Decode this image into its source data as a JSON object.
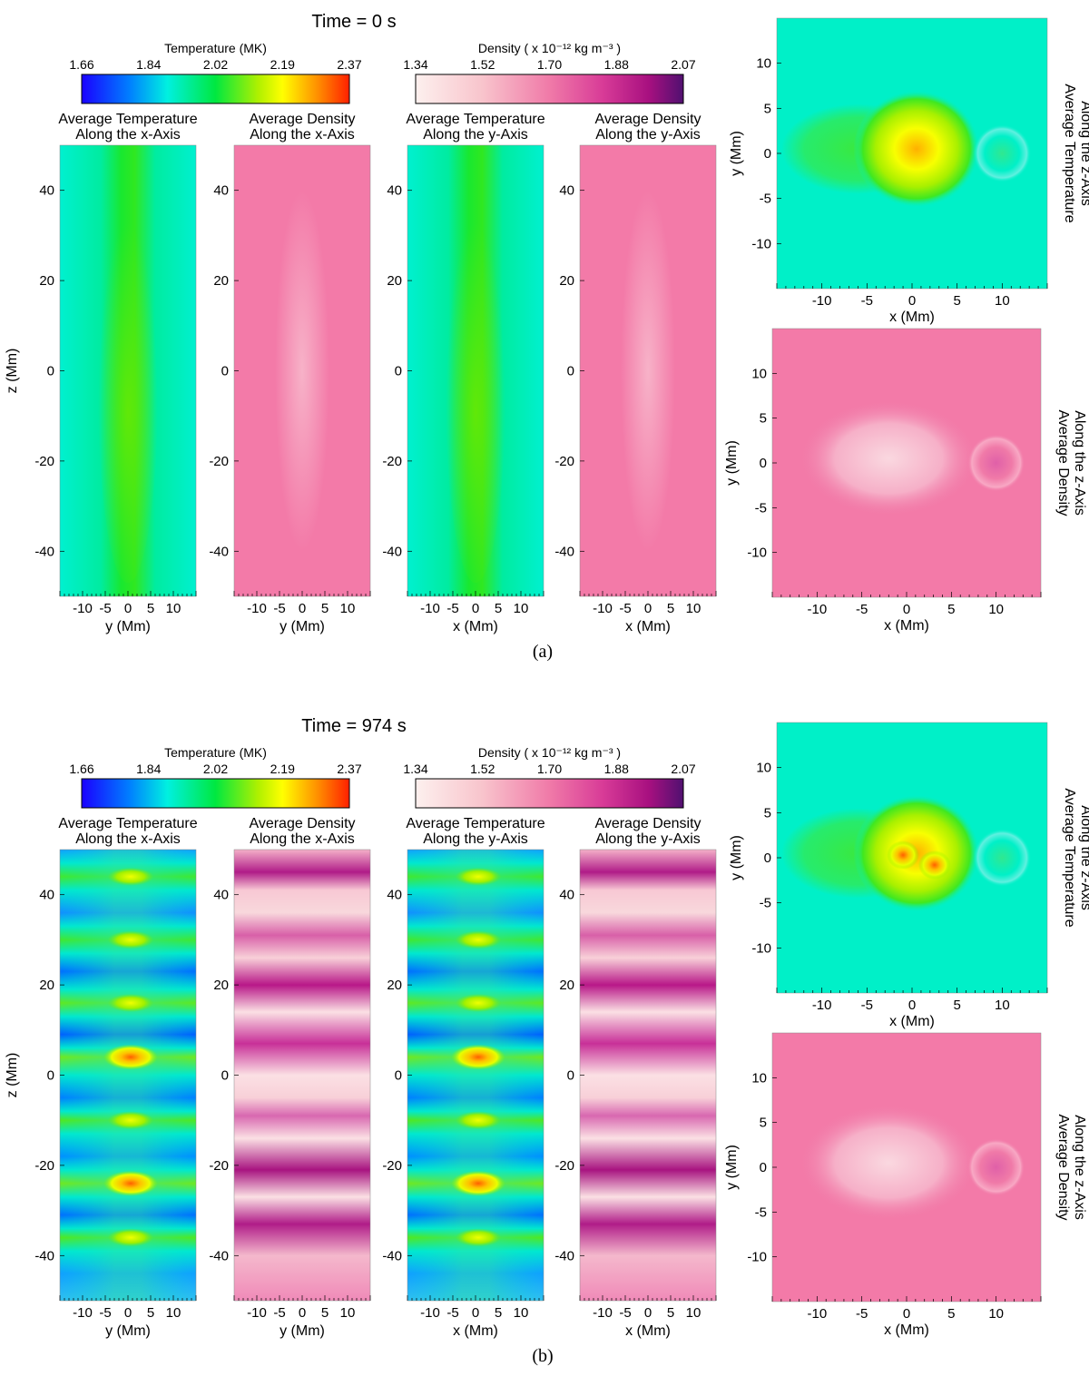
{
  "figure": {
    "panels": [
      {
        "time_label": "Time =  0 s",
        "caption": "(a)",
        "temp_colorbar": {
          "title": "Temperature (MK)",
          "ticks": [
            "1.66",
            "1.84",
            "2.02",
            "2.19",
            "2.37"
          ]
        },
        "dens_colorbar": {
          "title": "Density ( x 10⁻¹² kg m⁻³ )",
          "ticks": [
            "1.34",
            "1.52",
            "1.70",
            "1.88",
            "2.07"
          ]
        },
        "strips": [
          {
            "title1": "Average Temperature",
            "title2": "Along the x-Axis",
            "xlabel": "y (Mm)"
          },
          {
            "title1": "Average Density",
            "title2": "Along the x-Axis",
            "xlabel": "y (Mm)"
          },
          {
            "title1": "Average Temperature",
            "title2": "Along the y-Axis",
            "xlabel": "x (Mm)"
          },
          {
            "title1": "Average Density",
            "title2": "Along the y-Axis",
            "xlabel": "x (Mm)"
          }
        ],
        "squares": [
          {
            "side1": "Average Temperature",
            "side2": "Along the z-Axis",
            "xlabel": "x (Mm)",
            "ylabel": "y (Mm)"
          },
          {
            "side1": "Average Density",
            "side2": "Along the z-Axis",
            "xlabel": "x (Mm)",
            "ylabel": "y (Mm)"
          }
        ],
        "zlabel": "z (Mm)"
      },
      {
        "time_label": "Time =  974 s",
        "caption": "(b)",
        "temp_colorbar": {
          "title": "Temperature (MK)",
          "ticks": [
            "1.66",
            "1.84",
            "2.02",
            "2.19",
            "2.37"
          ]
        },
        "dens_colorbar": {
          "title": "Density ( x 10⁻¹² kg m⁻³ )",
          "ticks": [
            "1.34",
            "1.52",
            "1.70",
            "1.88",
            "2.07"
          ]
        },
        "strips": [
          {
            "title1": "Average Temperature",
            "title2": "Along the x-Axis",
            "xlabel": "y (Mm)"
          },
          {
            "title1": "Average Density",
            "title2": "Along the x-Axis",
            "xlabel": "y (Mm)"
          },
          {
            "title1": "Average Temperature",
            "title2": "Along the y-Axis",
            "xlabel": "x (Mm)"
          },
          {
            "title1": "Average Density",
            "title2": "Along the y-Axis",
            "xlabel": "x (Mm)"
          }
        ],
        "squares": [
          {
            "side1": "Average Temperature",
            "side2": "Along the z-Axis",
            "xlabel": "x (Mm)",
            "ylabel": "y (Mm)"
          },
          {
            "side1": "Average Density",
            "side2": "Along the z-Axis",
            "xlabel": "x (Mm)",
            "ylabel": "y (Mm)"
          }
        ],
        "zlabel": "z (Mm)"
      }
    ]
  },
  "chart_data": {
    "type": "heatmap",
    "colormaps": {
      "temperature": {
        "range_MK": [
          1.66,
          2.37
        ],
        "colors": [
          "#1a00ff",
          "#0080ff",
          "#00f0e0",
          "#00e840",
          "#b0f000",
          "#ffff00",
          "#ff9000",
          "#ff2000"
        ]
      },
      "density": {
        "range_1e-12_kg_m-3": [
          1.34,
          2.07
        ],
        "colors": [
          "#fdf0ee",
          "#f8c4cc",
          "#f07aa8",
          "#d83b97",
          "#a81080",
          "#501070"
        ]
      }
    },
    "strip_axes": {
      "horizontal_range_Mm": [
        -15,
        15
      ],
      "horizontal_ticks": [
        -10,
        -5,
        0,
        5,
        10
      ],
      "z_range_Mm": [
        -50,
        50
      ],
      "z_ticks": [
        -40,
        -20,
        0,
        20,
        40
      ]
    },
    "square_axes": {
      "x_range_Mm": [
        -15,
        15
      ],
      "y_range_Mm": [
        -15,
        15
      ],
      "x_ticks": [
        -10,
        -5,
        0,
        5,
        10
      ],
      "y_ticks": [
        -10,
        -5,
        0,
        5,
        10
      ]
    },
    "time_s": [
      0,
      974
    ],
    "band_z_Mm_t974": [
      44,
      30,
      16,
      4,
      -10,
      -24,
      -36
    ],
    "features": [
      {
        "time_s": 0,
        "field": "temperature",
        "note": "hot column near axis, peak about 2.1 MK"
      },
      {
        "time_s": 974,
        "field": "temperature",
        "note": "hot blobs at z bands, peak about 2.3 MK near z=4 and z=-24"
      },
      {
        "time_s": 974,
        "field": "density",
        "note": "dense horizontal bands at the same z"
      }
    ]
  }
}
